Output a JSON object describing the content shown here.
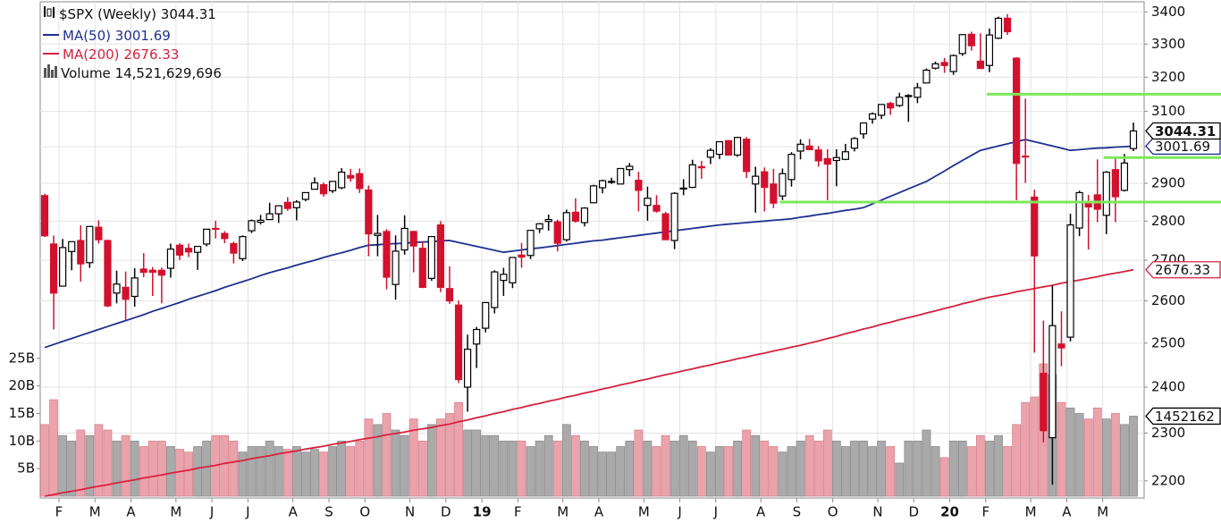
{
  "chart_data": {
    "type": "candlestick",
    "title": "$SPX (Weekly)",
    "log_scale": true,
    "grid": true,
    "ylim": [
      2169,
      3415
    ],
    "yticks": [
      2200,
      2300,
      2400,
      2500,
      2600,
      2700,
      2800,
      2900,
      3000,
      3100,
      3200,
      3300,
      3400
    ],
    "up_color": "#ffffff",
    "down_color": "#d3102e",
    "categories": [
      "F",
      null,
      null,
      null,
      "M",
      null,
      null,
      null,
      "A",
      null,
      null,
      null,
      null,
      "M",
      null,
      null,
      null,
      "J",
      null,
      null,
      null,
      "J",
      null,
      null,
      null,
      null,
      "A",
      null,
      null,
      null,
      "S",
      null,
      null,
      null,
      "O",
      null,
      null,
      null,
      null,
      "N",
      null,
      null,
      null,
      "D",
      null,
      null,
      null,
      "19",
      null,
      null,
      null,
      "F",
      null,
      null,
      null,
      null,
      "M",
      null,
      null,
      null,
      "A",
      null,
      null,
      null,
      null,
      "M",
      null,
      null,
      null,
      "J",
      null,
      null,
      null,
      "J",
      null,
      null,
      null,
      null,
      "A",
      null,
      null,
      null,
      "S",
      null,
      null,
      null,
      "O",
      null,
      null,
      null,
      null,
      "N",
      null,
      null,
      null,
      "D",
      null,
      null,
      null,
      "20",
      null,
      null,
      null,
      "F",
      null,
      null,
      null,
      null,
      "M",
      null,
      null,
      null,
      "A",
      null,
      null,
      null,
      "M",
      null,
      null,
      null,
      null,
      null
    ],
    "ohlc": [
      [
        2867,
        2872,
        2759,
        2762
      ],
      [
        2741,
        2763,
        2532,
        2619
      ],
      [
        2636,
        2754,
        2635,
        2732
      ],
      [
        2722,
        2747,
        2675,
        2747
      ],
      [
        2750,
        2789,
        2647,
        2691
      ],
      [
        2694,
        2786,
        2681,
        2786
      ],
      [
        2784,
        2802,
        2742,
        2752
      ],
      [
        2750,
        2752,
        2585,
        2588
      ],
      [
        2619,
        2674,
        2594,
        2641
      ],
      [
        2633,
        2672,
        2553,
        2604
      ],
      [
        2611,
        2680,
        2586,
        2656
      ],
      [
        2678,
        2718,
        2658,
        2670
      ],
      [
        2675,
        2683,
        2612,
        2670
      ],
      [
        2675,
        2682,
        2594,
        2663
      ],
      [
        2680,
        2742,
        2657,
        2728
      ],
      [
        2738,
        2743,
        2701,
        2713
      ],
      [
        2730,
        2742,
        2708,
        2721
      ],
      [
        2720,
        2736,
        2676,
        2735
      ],
      [
        2741,
        2779,
        2735,
        2779
      ],
      [
        2781,
        2801,
        2755,
        2780
      ],
      [
        2768,
        2774,
        2743,
        2755
      ],
      [
        2742,
        2747,
        2692,
        2718
      ],
      [
        2704,
        2763,
        2698,
        2760
      ],
      [
        2775,
        2804,
        2769,
        2801
      ],
      [
        2797,
        2816,
        2791,
        2802
      ],
      [
        2804,
        2848,
        2808,
        2819
      ],
      [
        2819,
        2841,
        2795,
        2840
      ],
      [
        2849,
        2863,
        2827,
        2833
      ],
      [
        2835,
        2855,
        2802,
        2850
      ],
      [
        2857,
        2876,
        2852,
        2875
      ],
      [
        2884,
        2916,
        2884,
        2901
      ],
      [
        2896,
        2902,
        2864,
        2872
      ],
      [
        2880,
        2906,
        2874,
        2905
      ],
      [
        2888,
        2941,
        2884,
        2930
      ],
      [
        2921,
        2939,
        2904,
        2914
      ],
      [
        2926,
        2940,
        2874,
        2886
      ],
      [
        2882,
        2894,
        2710,
        2767
      ],
      [
        2763,
        2816,
        2710,
        2768
      ],
      [
        2773,
        2779,
        2628,
        2658
      ],
      [
        2640,
        2763,
        2603,
        2723
      ],
      [
        2726,
        2815,
        2714,
        2781
      ],
      [
        2773,
        2775,
        2670,
        2736
      ],
      [
        2730,
        2747,
        2631,
        2633
      ],
      [
        2655,
        2760,
        2649,
        2760
      ],
      [
        2790,
        2800,
        2621,
        2633
      ],
      [
        2630,
        2685,
        2593,
        2600
      ],
      [
        2590,
        2601,
        2409,
        2417
      ],
      [
        2400,
        2520,
        2346,
        2486
      ],
      [
        2498,
        2538,
        2443,
        2532
      ],
      [
        2535,
        2597,
        2525,
        2596
      ],
      [
        2584,
        2675,
        2570,
        2671
      ],
      [
        2650,
        2681,
        2612,
        2665
      ],
      [
        2644,
        2708,
        2631,
        2707
      ],
      [
        2713,
        2744,
        2681,
        2708
      ],
      [
        2712,
        2776,
        2703,
        2776
      ],
      [
        2780,
        2795,
        2769,
        2793
      ],
      [
        2799,
        2817,
        2775,
        2804
      ],
      [
        2798,
        2804,
        2722,
        2743
      ],
      [
        2752,
        2830,
        2747,
        2822
      ],
      [
        2823,
        2860,
        2796,
        2800
      ],
      [
        2796,
        2836,
        2786,
        2834
      ],
      [
        2848,
        2896,
        2848,
        2893
      ],
      [
        2888,
        2910,
        2873,
        2907
      ],
      [
        2904,
        2915,
        2898,
        2905
      ],
      [
        2898,
        2940,
        2898,
        2940
      ],
      [
        2937,
        2955,
        2919,
        2946
      ],
      [
        2908,
        2931,
        2825,
        2881
      ],
      [
        2841,
        2891,
        2801,
        2860
      ],
      [
        2841,
        2868,
        2822,
        2826
      ],
      [
        2819,
        2824,
        2751,
        2752
      ],
      [
        2750,
        2876,
        2728,
        2873
      ],
      [
        2886,
        2911,
        2868,
        2887
      ],
      [
        2889,
        2964,
        2887,
        2950
      ],
      [
        2945,
        2961,
        2912,
        2942
      ],
      [
        2971,
        2996,
        2952,
        2990
      ],
      [
        2979,
        3014,
        2966,
        3014
      ],
      [
        3017,
        3018,
        2975,
        2977
      ],
      [
        2977,
        3028,
        2972,
        3026
      ],
      [
        3021,
        3027,
        2914,
        2932
      ],
      [
        2898,
        2945,
        2822,
        2919
      ],
      [
        2931,
        2943,
        2825,
        2889
      ],
      [
        2898,
        2939,
        2834,
        2847
      ],
      [
        2866,
        2940,
        2855,
        2926
      ],
      [
        2910,
        2985,
        2891,
        2979
      ],
      [
        2988,
        3021,
        2965,
        3007
      ],
      [
        3002,
        3022,
        2993,
        2992
      ],
      [
        2991,
        3002,
        2945,
        2961
      ],
      [
        2967,
        2993,
        2855,
        2952
      ],
      [
        2962,
        2993,
        2892,
        2970
      ],
      [
        2965,
        3008,
        2963,
        2986
      ],
      [
        2996,
        3027,
        2987,
        3023
      ],
      [
        3036,
        3066,
        3023,
        3067
      ],
      [
        3078,
        3097,
        3065,
        3093
      ],
      [
        3089,
        3120,
        3078,
        3120
      ],
      [
        3123,
        3128,
        3090,
        3110
      ],
      [
        3117,
        3154,
        3113,
        3141
      ],
      [
        3143,
        3150,
        3070,
        3146
      ],
      [
        3141,
        3183,
        3124,
        3169
      ],
      [
        3183,
        3226,
        3183,
        3221
      ],
      [
        3227,
        3247,
        3223,
        3240
      ],
      [
        3244,
        3258,
        3213,
        3235
      ],
      [
        3217,
        3268,
        3207,
        3265
      ],
      [
        3271,
        3329,
        3264,
        3329
      ],
      [
        3330,
        3338,
        3280,
        3295
      ],
      [
        3248,
        3333,
        3226,
        3226
      ],
      [
        3235,
        3348,
        3215,
        3328
      ],
      [
        3318,
        3385,
        3315,
        3380
      ],
      [
        3380,
        3393,
        3328,
        3338
      ],
      [
        3257,
        3260,
        2855,
        2954
      ],
      [
        2974,
        3137,
        2901,
        2972
      ],
      [
        2863,
        2883,
        2478,
        2711
      ],
      [
        2431,
        2553,
        2280,
        2305
      ],
      [
        2290,
        2637,
        2192,
        2541
      ],
      [
        2498,
        2575,
        2447,
        2489
      ],
      [
        2514,
        2819,
        2504,
        2790
      ],
      [
        2782,
        2880,
        2761,
        2875
      ],
      [
        2846,
        2869,
        2727,
        2837
      ],
      [
        2869,
        2965,
        2797,
        2831
      ],
      [
        2815,
        2933,
        2766,
        2930
      ],
      [
        2937,
        2968,
        2797,
        2864
      ],
      [
        2881,
        2980,
        2878,
        2955
      ],
      [
        2995,
        3068,
        2988,
        3044.31
      ]
    ],
    "series": [
      {
        "name": "MA(50)",
        "color": "#1f2f8f",
        "values": [
          2490,
          2497,
          2504,
          2511,
          2518,
          2525,
          2532,
          2539,
          2546,
          2553,
          2560,
          2567,
          2575,
          2582,
          2589,
          2596,
          2604,
          2611,
          2618,
          2625,
          2633,
          2640,
          2647,
          2654,
          2662,
          2669,
          2675,
          2681,
          2688,
          2694,
          2700,
          2707,
          2713,
          2719,
          2725,
          2732,
          2738,
          2739,
          2741,
          2742,
          2743,
          2745,
          2746,
          2747,
          2749,
          2750,
          2745,
          2740,
          2735,
          2730,
          2725,
          2720,
          2723,
          2726,
          2729,
          2731,
          2734,
          2737,
          2740,
          2743,
          2746,
          2749,
          2751,
          2754,
          2757,
          2760,
          2763,
          2766,
          2769,
          2772,
          2775,
          2778,
          2781,
          2784,
          2787,
          2790,
          2792,
          2794,
          2796,
          2798,
          2800,
          2802,
          2804,
          2806,
          2810,
          2813,
          2817,
          2820,
          2824,
          2828,
          2831,
          2835,
          2845,
          2855,
          2865,
          2875,
          2885,
          2895,
          2905,
          2919,
          2933,
          2948,
          2962,
          2976,
          2990,
          2996,
          3002,
          3008,
          3014,
          3020,
          3014,
          3008,
          3002,
          2996,
          2990,
          2992,
          2994,
          2996,
          2997,
          2999,
          3000,
          3001.69
        ]
      },
      {
        "name": "MA(200)",
        "color": "#d6213f",
        "values": [
          2169,
          2172,
          2176,
          2179,
          2182,
          2186,
          2189,
          2192,
          2196,
          2199,
          2202,
          2206,
          2209,
          2212,
          2216,
          2219,
          2222,
          2226,
          2229,
          2232,
          2236,
          2239,
          2242,
          2246,
          2249,
          2252,
          2256,
          2259,
          2262,
          2266,
          2269,
          2272,
          2276,
          2279,
          2282,
          2286,
          2289,
          2292,
          2296,
          2299,
          2302,
          2306,
          2309,
          2312,
          2316,
          2319,
          2324,
          2328,
          2333,
          2337,
          2342,
          2346,
          2351,
          2355,
          2360,
          2364,
          2369,
          2373,
          2378,
          2382,
          2387,
          2391,
          2396,
          2400,
          2405,
          2409,
          2414,
          2418,
          2423,
          2428,
          2432,
          2437,
          2441,
          2446,
          2450,
          2455,
          2459,
          2464,
          2468,
          2473,
          2477,
          2482,
          2486,
          2491,
          2495,
          2500,
          2505,
          2511,
          2516,
          2522,
          2527,
          2533,
          2538,
          2544,
          2549,
          2555,
          2560,
          2565,
          2571,
          2576,
          2582,
          2587,
          2593,
          2598,
          2604,
          2609,
          2613,
          2617,
          2622,
          2626,
          2630,
          2634,
          2638,
          2643,
          2647,
          2651,
          2655,
          2659,
          2664,
          2668,
          2672,
          2676.33
        ]
      }
    ],
    "volume": {
      "name": "Volume",
      "last_label": "14,521,629,696",
      "tag_label": "1452162",
      "up_color": "#aaaaaa",
      "down_color": "#eba3ab",
      "ylim": [
        0,
        30
      ],
      "yticks": [
        {
          "value": 5,
          "label": "5B"
        },
        {
          "value": 10,
          "label": "10B"
        },
        {
          "value": 15,
          "label": "15B"
        },
        {
          "value": 20,
          "label": "20B"
        },
        {
          "value": 25,
          "label": "25B"
        }
      ],
      "values": [
        13,
        17.5,
        11,
        10,
        12,
        11,
        13,
        12,
        10,
        11,
        10,
        9,
        10,
        10,
        9,
        8.5,
        8,
        9,
        10,
        11,
        11,
        10,
        8,
        9,
        9,
        10,
        9,
        8.5,
        9,
        8,
        8.5,
        8,
        9,
        10,
        9,
        10,
        14,
        13,
        15,
        12,
        11,
        14,
        10,
        13,
        14,
        15,
        17,
        12,
        12,
        11,
        11,
        10,
        10,
        10,
        9,
        10,
        11,
        10,
        13,
        11,
        10,
        9,
        8,
        8,
        9,
        10,
        12,
        10,
        9,
        11,
        10,
        11,
        10,
        9,
        8,
        9,
        9,
        10,
        12,
        11,
        10,
        9,
        8,
        9,
        10,
        11,
        10,
        12,
        10,
        9,
        10,
        10,
        9,
        10,
        9,
        6,
        10,
        10,
        12,
        9,
        7,
        10,
        10,
        9,
        11,
        10,
        11,
        9,
        13,
        17,
        18,
        24,
        22,
        17,
        16,
        15,
        14,
        16,
        14,
        15,
        13,
        14.52
      ]
    },
    "hlines": [
      {
        "value": 3150,
        "start": 105,
        "color": "#7de85a"
      },
      {
        "value": 2850,
        "start": 82,
        "color": "#7de85a"
      },
      {
        "value": 2970,
        "start": 118,
        "color": "#7de85a"
      }
    ]
  }
}
